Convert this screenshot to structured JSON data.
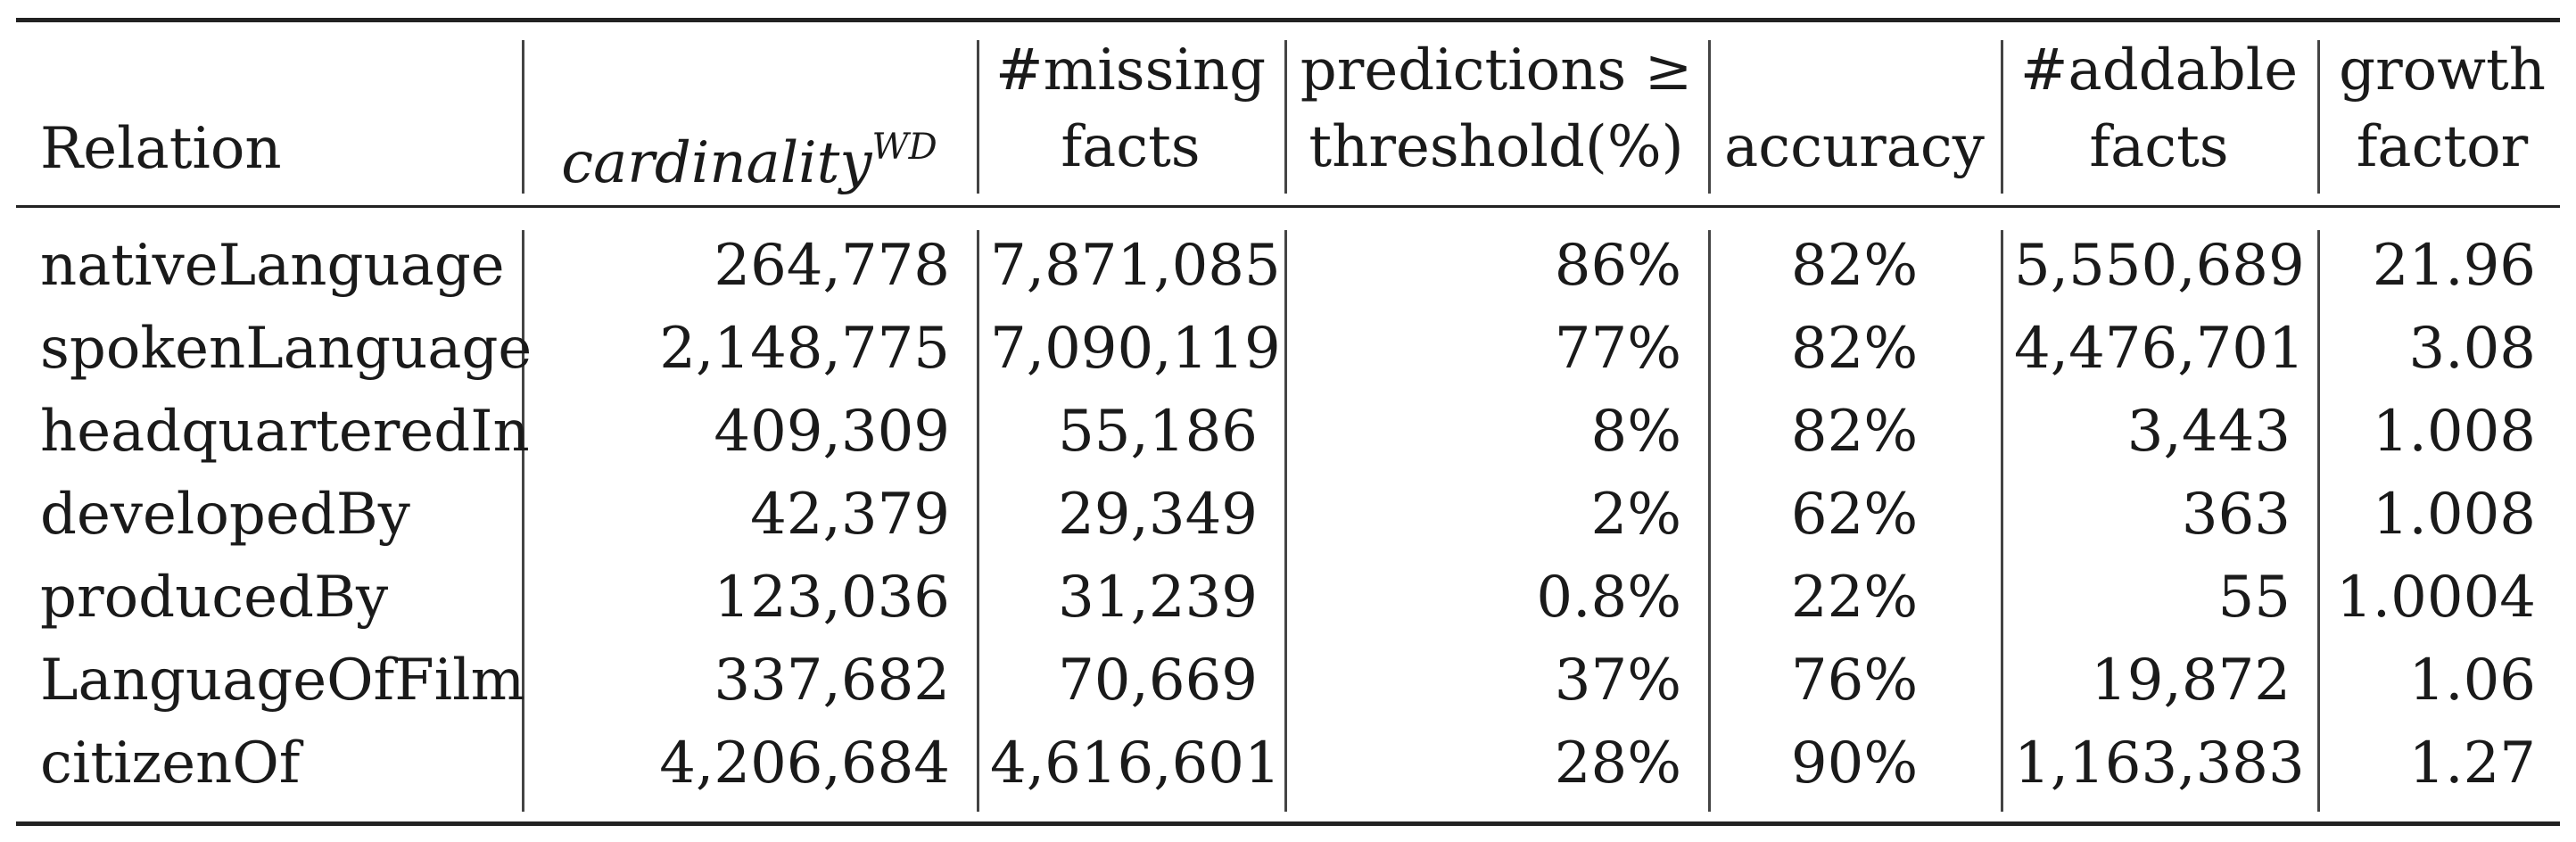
{
  "table": {
    "headers": {
      "relation": "Relation",
      "cardinality": "cardinality",
      "cardinality_sup": "WD",
      "missing_l1": "#missing",
      "missing_l2": "facts",
      "pred_l1": "predictions ≥",
      "pred_l2": "threshold(%)",
      "accuracy": "accuracy",
      "addable_l1": "#addable",
      "addable_l2": "facts",
      "growth_l1": "growth",
      "growth_l2": "factor"
    },
    "rows": [
      {
        "relation": "nativeLanguage",
        "cardinality": "264,778",
        "missing": "7,871,085",
        "predictions": "86%",
        "accuracy": "82%",
        "addable": "5,550,689",
        "growth": "21.96"
      },
      {
        "relation": "spokenLanguage",
        "cardinality": "2,148,775",
        "missing": "7,090,119",
        "predictions": "77%",
        "accuracy": "82%",
        "addable": "4,476,701",
        "growth": "3.08"
      },
      {
        "relation": "headquarteredIn",
        "cardinality": "409,309",
        "missing": "55,186",
        "predictions": "8%",
        "accuracy": "82%",
        "addable": "3,443",
        "growth": "1.008"
      },
      {
        "relation": "developedBy",
        "cardinality": "42,379",
        "missing": "29,349",
        "predictions": "2%",
        "accuracy": "62%",
        "addable": "363",
        "growth": "1.008"
      },
      {
        "relation": "producedBy",
        "cardinality": "123,036",
        "missing": "31,239",
        "predictions": "0.8%",
        "accuracy": "22%",
        "addable": "55",
        "growth": "1.0004"
      },
      {
        "relation": "LanguageOfFilm",
        "cardinality": "337,682",
        "missing": "70,669",
        "predictions": "37%",
        "accuracy": "76%",
        "addable": "19,872",
        "growth": "1.06"
      },
      {
        "relation": "citizenOf",
        "cardinality": "4,206,684",
        "missing": "4,616,601",
        "predictions": "28%",
        "accuracy": "90%",
        "addable": "1,163,383",
        "growth": "1.27"
      }
    ]
  }
}
